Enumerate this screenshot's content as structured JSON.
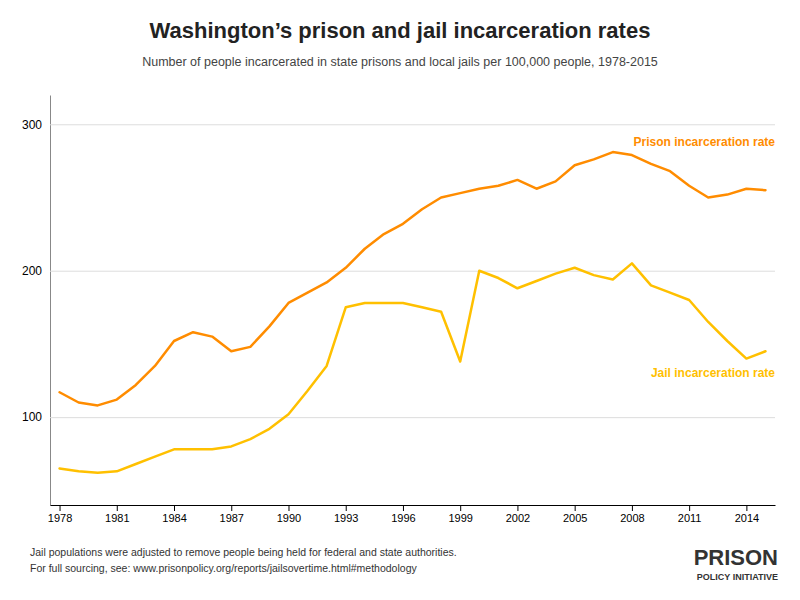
{
  "chart_data": {
    "type": "line",
    "title": "Washington’s prison and jail incarceration rates",
    "subtitle": "Number of people incarcerated in state prisons and local jails per 100,000 people, 1978-2015",
    "x": [
      1978,
      1979,
      1980,
      1981,
      1982,
      1983,
      1984,
      1985,
      1986,
      1987,
      1988,
      1989,
      1990,
      1991,
      1992,
      1993,
      1994,
      1995,
      1996,
      1997,
      1998,
      1999,
      2000,
      2001,
      2002,
      2003,
      2004,
      2005,
      2006,
      2007,
      2008,
      2009,
      2010,
      2011,
      2012,
      2013,
      2014,
      2015
    ],
    "series": [
      {
        "name": "Prison incarceration rate",
        "color": "#ff8c00",
        "values": [
          117,
          110,
          108,
          112,
          122,
          135,
          152,
          158,
          155,
          145,
          148,
          162,
          178,
          185,
          192,
          202,
          215,
          225,
          232,
          242,
          250,
          253,
          256,
          258,
          262,
          256,
          261,
          272,
          276,
          281,
          279,
          273,
          268,
          258,
          250,
          252,
          256,
          255
        ]
      },
      {
        "name": "Jail incarceration rate",
        "color": "#ffc000",
        "values": [
          65,
          63,
          62,
          63,
          68,
          73,
          78,
          78,
          78,
          80,
          85,
          92,
          102,
          118,
          135,
          175,
          178,
          178,
          178,
          175,
          172,
          138,
          200,
          195,
          188,
          193,
          198,
          202,
          197,
          194,
          205,
          190,
          185,
          180,
          165,
          152,
          140,
          145
        ]
      }
    ],
    "xlim": [
      1977.5,
      2015.5
    ],
    "xticks": [
      1978,
      1981,
      1984,
      1987,
      1990,
      1993,
      1996,
      1999,
      2002,
      2005,
      2008,
      2011,
      2014
    ],
    "ylim": [
      40,
      320
    ],
    "yticks": [
      100,
      200,
      300
    ],
    "grid": true,
    "annotations": [
      "Jail populations were adjusted to remove people being held for federal and state authorities.",
      "For full sourcing, see: www.prisonpolicy.org/reports/jailsovertime.html#methodology",
      "PRISON",
      "POLICY INITIATIVE"
    ]
  }
}
